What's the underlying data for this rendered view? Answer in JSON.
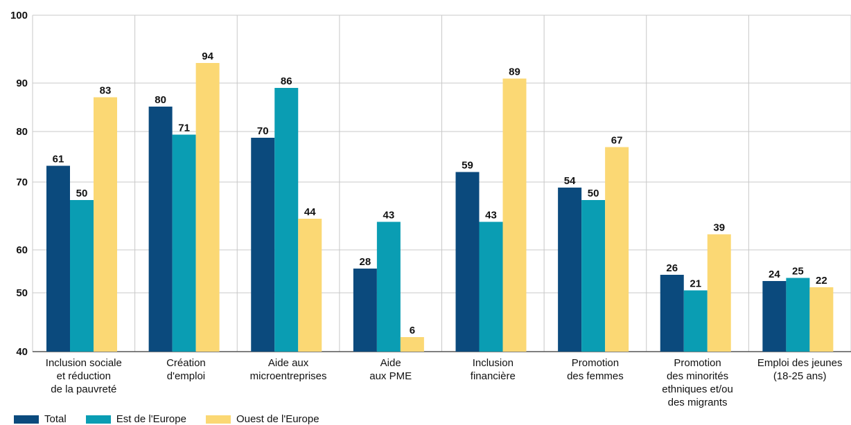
{
  "chart_data": {
    "type": "bar",
    "categories": [
      [
        "Inclusion sociale",
        "et réduction",
        "de la pauvreté"
      ],
      [
        "Création",
        "d'emploi"
      ],
      [
        "Aide aux",
        "microentreprises"
      ],
      [
        "Aide",
        "aux PME"
      ],
      [
        "Inclusion",
        "financière"
      ],
      [
        "Promotion",
        "des femmes"
      ],
      [
        "Promotion",
        "des minorités",
        "ethniques et/ou",
        "des migrants"
      ],
      [
        "Emploi des jeunes",
        "(18-25 ans)"
      ]
    ],
    "series": [
      {
        "name": "Total",
        "color": "#0b4a7d",
        "values": [
          61,
          80,
          70,
          28,
          59,
          54,
          26,
          24
        ]
      },
      {
        "name": "Est de l'Europe",
        "color": "#0a9db3",
        "values": [
          50,
          71,
          86,
          43,
          43,
          50,
          21,
          25
        ]
      },
      {
        "name": "Ouest de l'Europe",
        "color": "#fbd874",
        "values": [
          83,
          94,
          44,
          6,
          89,
          67,
          39,
          22
        ]
      }
    ],
    "y_ticks": [
      "100",
      "90",
      "80",
      "70",
      "60",
      "50",
      "40"
    ],
    "grid": true,
    "legend_position": "bottom-left"
  }
}
